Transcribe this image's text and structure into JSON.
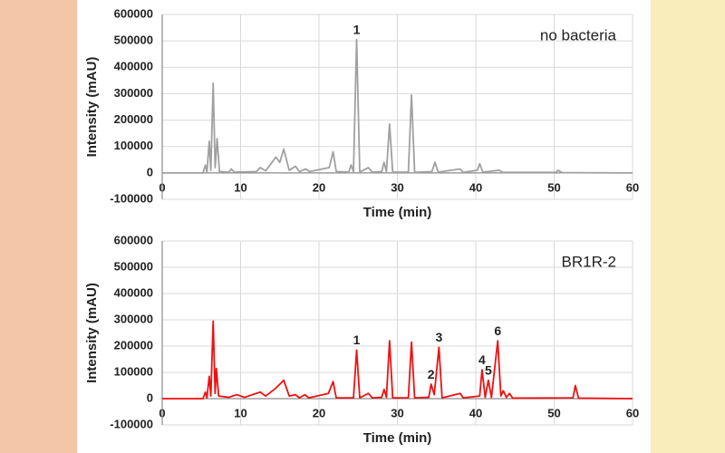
{
  "chart_data": [
    {
      "type": "line",
      "x_label": "Time (min)",
      "y_label": "Intensity (mAU)",
      "x": [
        0,
        5.2,
        5.5,
        5.7,
        6.0,
        6.2,
        6.5,
        6.75,
        7.0,
        7.3,
        8.5,
        8.8,
        9.2,
        12,
        12.5,
        13.2,
        14.5,
        15,
        15.5,
        16.2,
        17,
        17.5,
        18.3,
        18.8,
        21.3,
        21.8,
        22.2,
        23.8,
        24.1,
        24.4,
        24.8,
        25.2,
        26.3,
        26.8,
        28,
        28.3,
        28.6,
        29,
        29.4,
        31.4,
        31.8,
        32.2,
        34.4,
        34.8,
        35.2,
        38,
        38.4,
        40.2,
        40.5,
        40.9,
        43,
        43.4,
        50.2,
        50.5,
        51,
        60
      ],
      "series": [
        {
          "name": "no bacteria",
          "color": "#a0a0a0",
          "values": [
            0,
            0,
            30000,
            2000,
            120000,
            10000,
            340000,
            20000,
            130000,
            5000,
            3000,
            15000,
            3000,
            5000,
            20000,
            8000,
            60000,
            40000,
            90000,
            10000,
            25000,
            5000,
            15000,
            5000,
            20000,
            80000,
            5000,
            3000,
            30000,
            5000,
            505000,
            3000,
            20000,
            3000,
            5000,
            40000,
            5000,
            185000,
            3000,
            3000,
            295000,
            2000,
            5000,
            40000,
            3000,
            15000,
            2000,
            10000,
            35000,
            3000,
            10000,
            2000,
            2000,
            10000,
            1000,
            0
          ]
        }
      ],
      "annotations": [
        {
          "text": "1",
          "x": 24.8
        }
      ],
      "xlim": [
        0,
        60
      ],
      "ylim": [
        -100000,
        600000
      ],
      "xticks": [
        0,
        10,
        20,
        30,
        40,
        50,
        60
      ],
      "yticks": [
        -100000,
        0,
        100000,
        200000,
        300000,
        400000,
        500000,
        600000
      ],
      "grid": true,
      "legend": "upper right"
    },
    {
      "type": "line",
      "x_label": "Time (min)",
      "y_label": "Intensity (mAU)",
      "x": [
        0,
        5.2,
        5.5,
        5.7,
        6.0,
        6.2,
        6.5,
        6.75,
        6.9,
        7.2,
        8.5,
        9.5,
        10.5,
        12.5,
        13.2,
        14.5,
        15.5,
        16.2,
        17,
        17.5,
        18.2,
        18.7,
        21.2,
        21.8,
        22.2,
        24.4,
        24.8,
        25.2,
        26.3,
        26.8,
        28,
        28.3,
        28.6,
        29,
        29.4,
        31.4,
        31.8,
        32.2,
        34,
        34.3,
        34.7,
        35.3,
        35.7,
        38,
        38.4,
        40.5,
        40.8,
        41.2,
        41.6,
        42,
        42.8,
        43.2,
        43.5,
        43.9,
        44.3,
        44.7,
        52.4,
        52.7,
        53.1,
        60
      ],
      "series": [
        {
          "name": "BR1R-2",
          "color": "#ee1111",
          "values": [
            0,
            0,
            25000,
            3000,
            85000,
            10000,
            295000,
            20000,
            115000,
            10000,
            5000,
            15000,
            5000,
            25000,
            10000,
            40000,
            70000,
            10000,
            15000,
            3000,
            15000,
            3000,
            20000,
            65000,
            3000,
            3000,
            185000,
            3000,
            20000,
            3000,
            5000,
            35000,
            5000,
            220000,
            3000,
            3000,
            215000,
            3000,
            5000,
            55000,
            15000,
            195000,
            3000,
            20000,
            3000,
            10000,
            110000,
            5000,
            70000,
            5000,
            220000,
            10000,
            30000,
            5000,
            20000,
            2000,
            3000,
            50000,
            2000,
            0
          ]
        }
      ],
      "annotations": [
        {
          "text": "1",
          "x": 24.8
        },
        {
          "text": "2",
          "x": 34.3
        },
        {
          "text": "3",
          "x": 35.3
        },
        {
          "text": "4",
          "x": 40.8
        },
        {
          "text": "5",
          "x": 41.6
        },
        {
          "text": "6",
          "x": 42.8
        }
      ],
      "xlim": [
        0,
        60
      ],
      "ylim": [
        -100000,
        600000
      ],
      "xticks": [
        0,
        10,
        20,
        30,
        40,
        50,
        60
      ],
      "yticks": [
        -100000,
        0,
        100000,
        200000,
        300000,
        400000,
        500000,
        600000
      ],
      "grid": true,
      "legend": "upper right"
    }
  ]
}
